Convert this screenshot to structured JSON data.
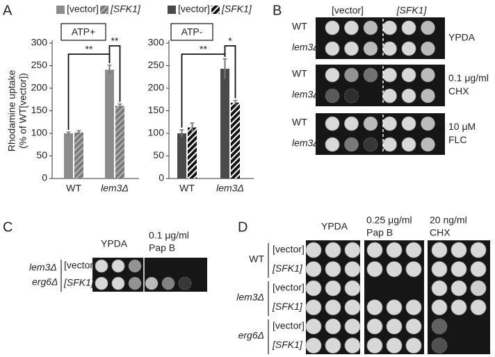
{
  "panels": {
    "A": {
      "letter": "A"
    },
    "B": {
      "letter": "B",
      "columns": [
        "[vector]",
        "[SFK1]"
      ],
      "strains": [
        "WT",
        "lem3Δ"
      ],
      "conditions": [
        [
          "YPDA"
        ],
        [
          "0.1 μg/ml",
          "CHX"
        ],
        [
          "10 μM",
          "FLC"
        ]
      ]
    },
    "C": {
      "letter": "C",
      "strain_lines": [
        "lem3Δ",
        "erg6Δ"
      ],
      "plasmids": [
        "[vector]",
        "[SFK1]"
      ],
      "conditions": [
        [
          "YPDA"
        ],
        [
          "0.1 μg/ml",
          "Pap B"
        ]
      ]
    },
    "D": {
      "letter": "D",
      "strains": [
        "WT",
        "lem3Δ",
        "erg6Δ"
      ],
      "plasmids": [
        "[vector]",
        "[SFK1]"
      ],
      "conditions": [
        [
          "YPDA"
        ],
        [
          "0.25 μg/ml",
          "Pap B"
        ],
        [
          "20 ng/ml",
          "CHX"
        ]
      ]
    }
  },
  "chart_data": [
    {
      "type": "bar",
      "title": "ATP+",
      "ylabel": [
        "Rhodamine uptake",
        "(% of WT[vector])"
      ],
      "categories": [
        "WT",
        "lem3Δ"
      ],
      "series": [
        {
          "name": "[vector]",
          "color": "#8c8c8c",
          "hatched": false,
          "values": [
            100,
            241
          ],
          "errors": [
            3,
            10
          ]
        },
        {
          "name": "[SFK1]",
          "color": "#7a7a7a",
          "hatched": true,
          "values": [
            102,
            161
          ],
          "errors": [
            4,
            4
          ]
        }
      ],
      "annotations": [
        "**",
        "**"
      ],
      "ylim": [
        0,
        300
      ],
      "yticks": [
        0,
        50,
        100,
        150,
        200,
        250,
        300
      ],
      "grid": false
    },
    {
      "type": "bar",
      "title": "ATP-",
      "categories": [
        "WT",
        "lem3Δ"
      ],
      "series": [
        {
          "name": "[vector]",
          "color": "#4a4a4a",
          "hatched": false,
          "values": [
            100,
            243
          ],
          "errors": [
            8,
            22
          ]
        },
        {
          "name": "[SFK1]",
          "color": "#111111",
          "hatched": true,
          "values": [
            113,
            168
          ],
          "errors": [
            10,
            5
          ]
        }
      ],
      "annotations": [
        "**",
        "*"
      ],
      "ylim": [
        0,
        300
      ],
      "yticks": [
        0,
        50,
        100,
        150,
        200,
        250,
        300
      ],
      "grid": false
    }
  ]
}
